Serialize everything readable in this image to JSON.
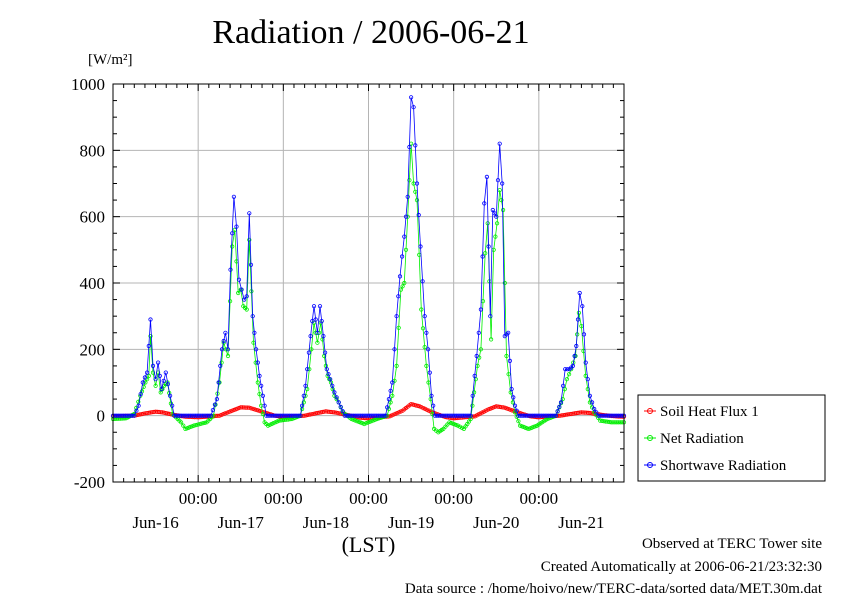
{
  "chart_data": {
    "type": "line",
    "title": "Radiation / 2006-06-21",
    "yunit": "[W/m²]",
    "xlabel": "(LST)",
    "ylim": [
      -200,
      1000
    ],
    "yticks": [
      -200,
      0,
      200,
      400,
      600,
      800,
      1000
    ],
    "xlim_days": [
      0,
      6
    ],
    "xtick_time_label": "00:00",
    "xtick_times": [
      1,
      2,
      3,
      4,
      5
    ],
    "date_labels": [
      "Jun-16",
      "Jun-17",
      "Jun-18",
      "Jun-19",
      "Jun-20",
      "Jun-21"
    ],
    "grid": true,
    "legend_position": "right",
    "series": [
      {
        "name": "Soil Heat Flux 1",
        "color": "#ff0000",
        "marker": "circle",
        "points": [
          [
            0.0,
            -2
          ],
          [
            0.25,
            0
          ],
          [
            0.38,
            7
          ],
          [
            0.5,
            12
          ],
          [
            0.58,
            10
          ],
          [
            0.7,
            3
          ],
          [
            0.85,
            -3
          ],
          [
            1.0,
            -5
          ],
          [
            1.25,
            0
          ],
          [
            1.4,
            15
          ],
          [
            1.5,
            25
          ],
          [
            1.6,
            24
          ],
          [
            1.75,
            12
          ],
          [
            1.9,
            0
          ],
          [
            2.0,
            -4
          ],
          [
            2.25,
            0
          ],
          [
            2.4,
            8
          ],
          [
            2.5,
            13
          ],
          [
            2.6,
            10
          ],
          [
            2.75,
            2
          ],
          [
            2.9,
            -6
          ],
          [
            3.0,
            -8
          ],
          [
            3.25,
            -2
          ],
          [
            3.4,
            15
          ],
          [
            3.5,
            35
          ],
          [
            3.6,
            28
          ],
          [
            3.75,
            10
          ],
          [
            3.9,
            -4
          ],
          [
            4.0,
            -8
          ],
          [
            4.25,
            -2
          ],
          [
            4.4,
            18
          ],
          [
            4.5,
            28
          ],
          [
            4.6,
            24
          ],
          [
            4.75,
            10
          ],
          [
            4.9,
            -2
          ],
          [
            5.0,
            -5
          ],
          [
            5.25,
            0
          ],
          [
            5.4,
            6
          ],
          [
            5.5,
            10
          ],
          [
            5.6,
            8
          ],
          [
            5.75,
            2
          ],
          [
            5.9,
            -2
          ],
          [
            6.0,
            -3
          ]
        ]
      },
      {
        "name": "Net Radiation",
        "color": "#00ee00",
        "marker": "circle",
        "points": [
          [
            0.0,
            -10
          ],
          [
            0.15,
            -8
          ],
          [
            0.25,
            5
          ],
          [
            0.32,
            60
          ],
          [
            0.38,
            100
          ],
          [
            0.42,
            120
          ],
          [
            0.44,
            240
          ],
          [
            0.47,
            130
          ],
          [
            0.5,
            90
          ],
          [
            0.53,
            130
          ],
          [
            0.56,
            70
          ],
          [
            0.6,
            90
          ],
          [
            0.64,
            100
          ],
          [
            0.7,
            5
          ],
          [
            0.8,
            -20
          ],
          [
            0.85,
            -40
          ],
          [
            0.95,
            -30
          ],
          [
            1.1,
            -20
          ],
          [
            1.18,
            0
          ],
          [
            1.25,
            100
          ],
          [
            1.3,
            220
          ],
          [
            1.35,
            180
          ],
          [
            1.4,
            510
          ],
          [
            1.43,
            560
          ],
          [
            1.47,
            370
          ],
          [
            1.5,
            380
          ],
          [
            1.53,
            330
          ],
          [
            1.57,
            320
          ],
          [
            1.6,
            530
          ],
          [
            1.65,
            220
          ],
          [
            1.7,
            100
          ],
          [
            1.74,
            30
          ],
          [
            1.78,
            -20
          ],
          [
            1.82,
            -30
          ],
          [
            1.95,
            -15
          ],
          [
            2.1,
            -10
          ],
          [
            2.2,
            0
          ],
          [
            2.28,
            80
          ],
          [
            2.33,
            200
          ],
          [
            2.36,
            280
          ],
          [
            2.4,
            220
          ],
          [
            2.44,
            280
          ],
          [
            2.48,
            180
          ],
          [
            2.52,
            120
          ],
          [
            2.56,
            100
          ],
          [
            2.6,
            60
          ],
          [
            2.65,
            40
          ],
          [
            2.7,
            10
          ],
          [
            2.8,
            -10
          ],
          [
            2.95,
            -25
          ],
          [
            3.1,
            -10
          ],
          [
            3.22,
            0
          ],
          [
            3.28,
            60
          ],
          [
            3.33,
            150
          ],
          [
            3.38,
            380
          ],
          [
            3.42,
            400
          ],
          [
            3.46,
            600
          ],
          [
            3.5,
            820
          ],
          [
            3.53,
            700
          ],
          [
            3.57,
            650
          ],
          [
            3.62,
            320
          ],
          [
            3.68,
            150
          ],
          [
            3.73,
            50
          ],
          [
            3.77,
            -40
          ],
          [
            3.82,
            -50
          ],
          [
            3.88,
            -40
          ],
          [
            3.95,
            -20
          ],
          [
            4.05,
            -30
          ],
          [
            4.12,
            -40
          ],
          [
            4.2,
            -10
          ],
          [
            4.28,
            150
          ],
          [
            4.32,
            200
          ],
          [
            4.37,
            490
          ],
          [
            4.4,
            580
          ],
          [
            4.44,
            230
          ],
          [
            4.47,
            500
          ],
          [
            4.51,
            580
          ],
          [
            4.54,
            680
          ],
          [
            4.58,
            620
          ],
          [
            4.62,
            180
          ],
          [
            4.67,
            70
          ],
          [
            4.72,
            10
          ],
          [
            4.78,
            -30
          ],
          [
            4.88,
            -40
          ],
          [
            4.98,
            -30
          ],
          [
            5.1,
            -10
          ],
          [
            5.2,
            0
          ],
          [
            5.28,
            50
          ],
          [
            5.33,
            110
          ],
          [
            5.38,
            140
          ],
          [
            5.43,
            180
          ],
          [
            5.47,
            310
          ],
          [
            5.5,
            270
          ],
          [
            5.55,
            120
          ],
          [
            5.6,
            40
          ],
          [
            5.65,
            10
          ],
          [
            5.72,
            -15
          ],
          [
            5.85,
            -20
          ],
          [
            6.0,
            -20
          ]
        ]
      },
      {
        "name": "Shortwave Radiation",
        "color": "#0000ff",
        "marker": "circle",
        "points": [
          [
            0.0,
            0
          ],
          [
            0.25,
            0
          ],
          [
            0.3,
            30
          ],
          [
            0.35,
            100
          ],
          [
            0.4,
            130
          ],
          [
            0.44,
            290
          ],
          [
            0.47,
            150
          ],
          [
            0.5,
            110
          ],
          [
            0.53,
            160
          ],
          [
            0.57,
            80
          ],
          [
            0.62,
            130
          ],
          [
            0.67,
            60
          ],
          [
            0.72,
            0
          ],
          [
            0.95,
            0
          ],
          [
            1.15,
            0
          ],
          [
            1.22,
            50
          ],
          [
            1.28,
            200
          ],
          [
            1.32,
            250
          ],
          [
            1.35,
            200
          ],
          [
            1.38,
            440
          ],
          [
            1.42,
            660
          ],
          [
            1.45,
            570
          ],
          [
            1.48,
            410
          ],
          [
            1.51,
            380
          ],
          [
            1.54,
            350
          ],
          [
            1.57,
            360
          ],
          [
            1.6,
            610
          ],
          [
            1.64,
            300
          ],
          [
            1.68,
            200
          ],
          [
            1.72,
            120
          ],
          [
            1.76,
            60
          ],
          [
            1.8,
            0
          ],
          [
            2.2,
            0
          ],
          [
            2.26,
            90
          ],
          [
            2.32,
            240
          ],
          [
            2.36,
            330
          ],
          [
            2.4,
            250
          ],
          [
            2.43,
            330
          ],
          [
            2.47,
            240
          ],
          [
            2.51,
            140
          ],
          [
            2.55,
            110
          ],
          [
            2.6,
            70
          ],
          [
            2.65,
            40
          ],
          [
            2.72,
            0
          ],
          [
            3.2,
            0
          ],
          [
            3.28,
            100
          ],
          [
            3.33,
            300
          ],
          [
            3.37,
            420
          ],
          [
            3.42,
            540
          ],
          [
            3.46,
            660
          ],
          [
            3.5,
            960
          ],
          [
            3.53,
            930
          ],
          [
            3.57,
            700
          ],
          [
            3.61,
            510
          ],
          [
            3.66,
            300
          ],
          [
            3.7,
            200
          ],
          [
            3.74,
            60
          ],
          [
            3.78,
            0
          ],
          [
            4.2,
            0
          ],
          [
            4.27,
            180
          ],
          [
            4.32,
            320
          ],
          [
            4.36,
            640
          ],
          [
            4.39,
            720
          ],
          [
            4.43,
            300
          ],
          [
            4.46,
            620
          ],
          [
            4.5,
            600
          ],
          [
            4.54,
            820
          ],
          [
            4.57,
            700
          ],
          [
            4.6,
            240
          ],
          [
            4.64,
            250
          ],
          [
            4.68,
            80
          ],
          [
            4.72,
            30
          ],
          [
            4.76,
            0
          ],
          [
            5.2,
            0
          ],
          [
            5.26,
            40
          ],
          [
            5.31,
            140
          ],
          [
            5.36,
            140
          ],
          [
            5.4,
            150
          ],
          [
            5.44,
            210
          ],
          [
            5.48,
            370
          ],
          [
            5.51,
            330
          ],
          [
            5.55,
            160
          ],
          [
            5.6,
            60
          ],
          [
            5.65,
            20
          ],
          [
            5.7,
            0
          ],
          [
            6.0,
            0
          ]
        ]
      }
    ]
  },
  "footer": {
    "observed": "Observed at TERC Tower site",
    "created": "Created Automatically at 2006-06-21/23:32:30",
    "source": "Data source : /home/hoivo/new/TERC-data/sorted  data/MET.30m.dat"
  }
}
